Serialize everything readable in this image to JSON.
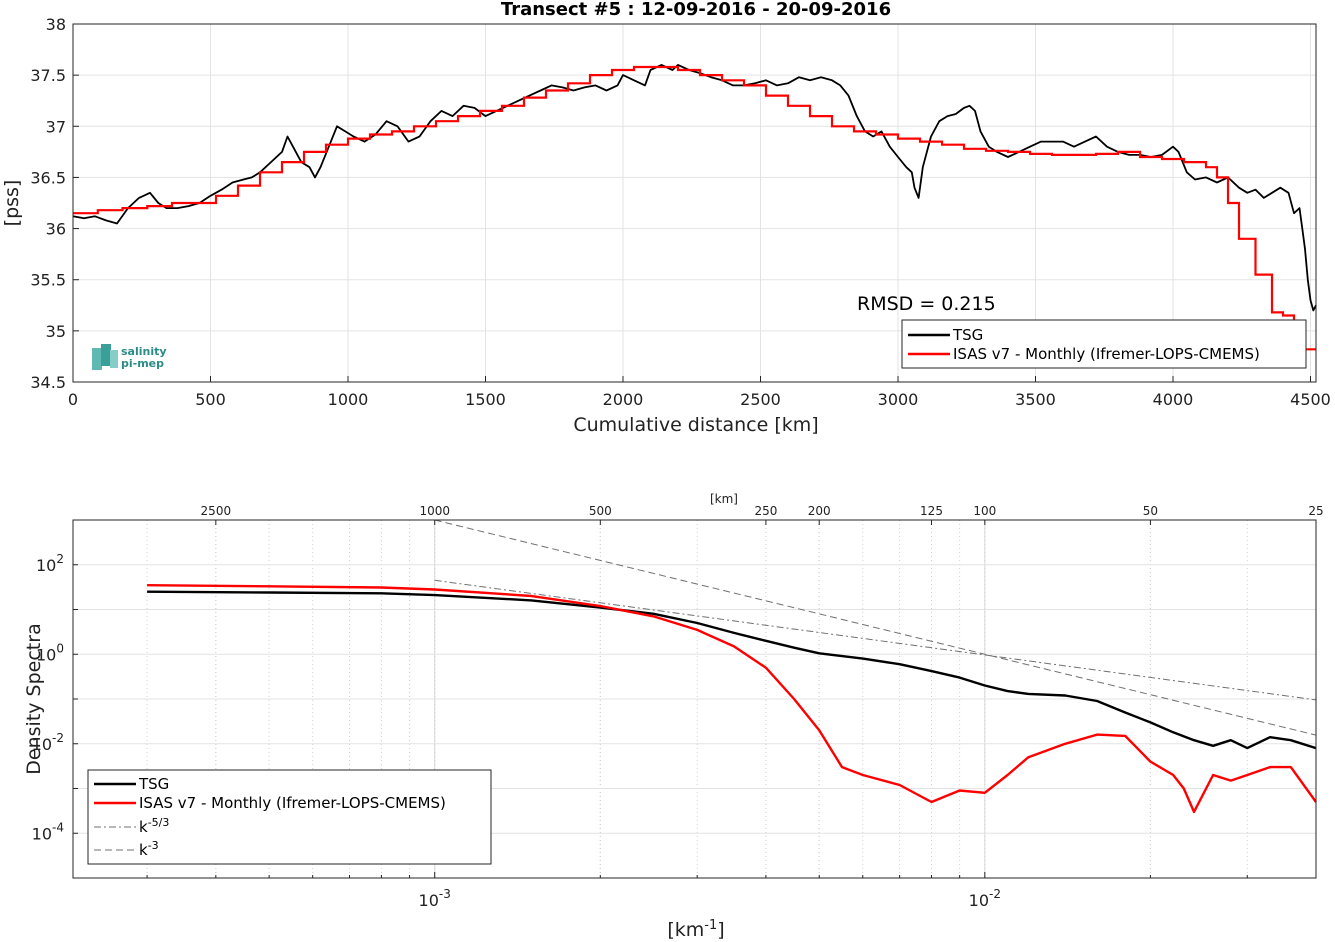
{
  "chart_data": [
    {
      "type": "line",
      "title": "Transect #5 : 12-09-2016 - 20-09-2016",
      "xlabel": "Cumulative distance [km]",
      "ylabel": "[pss]",
      "xlim": [
        0,
        4520
      ],
      "ylim": [
        34.5,
        38
      ],
      "xticks": [
        0,
        500,
        1000,
        1500,
        2000,
        2500,
        3000,
        3500,
        4000,
        4500
      ],
      "yticks": [
        34.5,
        35,
        35.5,
        36,
        36.5,
        37,
        37.5,
        38
      ],
      "xtick_labels": [
        "0",
        "500",
        "1000",
        "1500",
        "2000",
        "2500",
        "3000",
        "3500",
        "4000",
        "4500"
      ],
      "ytick_labels": [
        "34.5",
        "35",
        "35.5",
        "36",
        "36.5",
        "37",
        "37.5",
        "38"
      ],
      "grid": true,
      "legend_position": "bottom-right",
      "annotation": "RMSD = 0.215",
      "logo": {
        "line1": "salinity",
        "line2": "pi-mep",
        "color": "#2a8c86"
      },
      "series": [
        {
          "name": "TSG",
          "color": "#000000",
          "x": [
            0,
            40,
            80,
            120,
            160,
            200,
            240,
            280,
            310,
            340,
            380,
            420,
            460,
            500,
            540,
            580,
            620,
            650,
            680,
            720,
            760,
            780,
            800,
            830,
            860,
            880,
            900,
            930,
            960,
            990,
            1020,
            1060,
            1100,
            1140,
            1180,
            1220,
            1260,
            1300,
            1340,
            1380,
            1420,
            1460,
            1500,
            1540,
            1580,
            1620,
            1660,
            1700,
            1740,
            1780,
            1820,
            1860,
            1900,
            1940,
            1980,
            2000,
            2040,
            2080,
            2100,
            2140,
            2180,
            2200,
            2240,
            2280,
            2320,
            2360,
            2400,
            2440,
            2480,
            2520,
            2560,
            2600,
            2640,
            2680,
            2720,
            2760,
            2790,
            2820,
            2850,
            2880,
            2910,
            2940,
            2970,
            3000,
            3030,
            3050,
            3060,
            3075,
            3090,
            3120,
            3150,
            3180,
            3210,
            3240,
            3260,
            3280,
            3300,
            3330,
            3360,
            3400,
            3440,
            3480,
            3520,
            3560,
            3600,
            3640,
            3680,
            3720,
            3760,
            3800,
            3840,
            3880,
            3920,
            3960,
            4000,
            4020,
            4050,
            4080,
            4120,
            4160,
            4200,
            4240,
            4270,
            4300,
            4330,
            4360,
            4390,
            4420,
            4440,
            4460,
            4470,
            4480,
            4490,
            4500,
            4510,
            4520
          ],
          "y": [
            36.12,
            36.1,
            36.12,
            36.08,
            36.05,
            36.2,
            36.3,
            36.35,
            36.25,
            36.2,
            36.2,
            36.22,
            36.25,
            36.32,
            36.38,
            36.45,
            36.48,
            36.5,
            36.55,
            36.65,
            36.75,
            36.9,
            36.8,
            36.65,
            36.6,
            36.5,
            36.6,
            36.8,
            37.0,
            36.95,
            36.9,
            36.85,
            36.92,
            37.05,
            37.0,
            36.85,
            36.9,
            37.05,
            37.15,
            37.1,
            37.2,
            37.18,
            37.1,
            37.15,
            37.2,
            37.25,
            37.3,
            37.35,
            37.4,
            37.38,
            37.35,
            37.38,
            37.4,
            37.35,
            37.4,
            37.5,
            37.45,
            37.4,
            37.55,
            37.6,
            37.55,
            37.6,
            37.55,
            37.52,
            37.48,
            37.45,
            37.4,
            37.4,
            37.42,
            37.45,
            37.4,
            37.42,
            37.48,
            37.45,
            37.48,
            37.45,
            37.4,
            37.3,
            37.1,
            36.95,
            36.9,
            36.95,
            36.8,
            36.7,
            36.6,
            36.55,
            36.4,
            36.3,
            36.6,
            36.9,
            37.05,
            37.1,
            37.12,
            37.18,
            37.2,
            37.15,
            36.95,
            36.8,
            36.75,
            36.7,
            36.75,
            36.8,
            36.85,
            36.85,
            36.85,
            36.8,
            36.85,
            36.9,
            36.8,
            36.75,
            36.72,
            36.72,
            36.7,
            36.72,
            36.8,
            36.75,
            36.55,
            36.48,
            36.5,
            36.45,
            36.5,
            36.4,
            36.35,
            36.38,
            36.3,
            36.35,
            36.4,
            36.35,
            36.15,
            36.2,
            36.0,
            35.8,
            35.5,
            35.3,
            35.2,
            35.25
          ]
        },
        {
          "name": "ISAS v7 - Monthly (Ifremer-LOPS-CMEMS)",
          "color": "#ff0000",
          "x": [
            0,
            90,
            180,
            270,
            360,
            450,
            520,
            600,
            680,
            760,
            840,
            920,
            1000,
            1080,
            1160,
            1240,
            1320,
            1400,
            1480,
            1560,
            1640,
            1720,
            1800,
            1880,
            1960,
            2040,
            2120,
            2200,
            2280,
            2360,
            2440,
            2520,
            2600,
            2680,
            2760,
            2840,
            2920,
            3000,
            3080,
            3160,
            3240,
            3320,
            3400,
            3480,
            3560,
            3640,
            3720,
            3800,
            3880,
            3960,
            4040,
            4120,
            4160,
            4200,
            4240,
            4300,
            4360,
            4400,
            4440,
            4480,
            4520
          ],
          "y": [
            36.15,
            36.18,
            36.2,
            36.22,
            36.25,
            36.25,
            36.32,
            36.42,
            36.55,
            36.65,
            36.75,
            36.82,
            36.88,
            36.92,
            36.95,
            37.0,
            37.05,
            37.1,
            37.15,
            37.2,
            37.28,
            37.35,
            37.42,
            37.5,
            37.55,
            37.58,
            37.58,
            37.55,
            37.5,
            37.45,
            37.4,
            37.3,
            37.2,
            37.1,
            37.0,
            36.95,
            36.92,
            36.88,
            36.85,
            36.82,
            36.78,
            36.76,
            36.75,
            36.73,
            36.72,
            36.72,
            36.73,
            36.75,
            36.7,
            36.68,
            36.65,
            36.6,
            36.5,
            36.25,
            35.9,
            35.55,
            35.18,
            35.15,
            34.88,
            34.82,
            34.82
          ]
        }
      ]
    },
    {
      "type": "line",
      "xlabel": "[km⁻¹]",
      "ylabel": "Density Spectra",
      "x_scale": "log",
      "y_scale": "log",
      "xlim": [
        0.00022,
        0.04
      ],
      "ylim": [
        1e-05,
        1000
      ],
      "xtick_major": [
        0.001,
        0.01
      ],
      "ytick_major": [
        0.0001,
        0.01,
        1,
        100
      ],
      "top_axis": {
        "label": "[km]",
        "ticks_km": [
          2500,
          1000,
          500,
          250,
          200,
          125,
          100,
          50,
          25
        ],
        "tick_labels": [
          "2500",
          "1000",
          "500",
          "250",
          "200",
          "125",
          "100",
          "50",
          "25"
        ]
      },
      "grid": true,
      "legend_position": "bottom-left",
      "series": [
        {
          "name": "TSG",
          "color": "#000000",
          "x": [
            0.0003,
            0.0005,
            0.0008,
            0.001,
            0.0015,
            0.002,
            0.0025,
            0.003,
            0.0035,
            0.004,
            0.0045,
            0.005,
            0.006,
            0.007,
            0.008,
            0.009,
            0.01,
            0.011,
            0.012,
            0.014,
            0.016,
            0.018,
            0.02,
            0.022,
            0.024,
            0.026,
            0.028,
            0.03,
            0.033,
            0.036,
            0.04
          ],
          "y": [
            25,
            24,
            23,
            21,
            16,
            11,
            8,
            5,
            3,
            2,
            1.4,
            1.05,
            0.8,
            0.6,
            0.42,
            0.3,
            0.2,
            0.15,
            0.13,
            0.12,
            0.09,
            0.05,
            0.03,
            0.018,
            0.012,
            0.009,
            0.012,
            0.008,
            0.014,
            0.012,
            0.008
          ]
        },
        {
          "name": "ISAS v7 - Monthly (Ifremer-LOPS-CMEMS)",
          "color": "#ff0000",
          "x": [
            0.0003,
            0.0005,
            0.0008,
            0.001,
            0.0015,
            0.002,
            0.0025,
            0.003,
            0.0035,
            0.004,
            0.0045,
            0.005,
            0.0055,
            0.006,
            0.007,
            0.008,
            0.009,
            0.01,
            0.011,
            0.012,
            0.014,
            0.016,
            0.018,
            0.02,
            0.022,
            0.023,
            0.024,
            0.026,
            0.028,
            0.03,
            0.033,
            0.036,
            0.04
          ],
          "y": [
            35,
            33,
            31,
            28,
            20,
            12,
            7,
            3.5,
            1.5,
            0.5,
            0.1,
            0.02,
            0.003,
            0.002,
            0.0012,
            0.0005,
            0.0009,
            0.0008,
            0.002,
            0.005,
            0.01,
            0.016,
            0.015,
            0.004,
            0.002,
            0.001,
            0.0003,
            0.002,
            0.0015,
            0.002,
            0.003,
            0.003,
            0.0005
          ]
        },
        {
          "name": "k⁻⁵/³",
          "color": "#707070",
          "dash": "dashdot",
          "x": [
            0.001,
            0.04
          ],
          "y": [
            45,
            0.0955
          ]
        },
        {
          "name": "k⁻³",
          "color": "#707070",
          "dash": "dashed",
          "x": [
            0.001,
            0.04
          ],
          "y": [
            1000,
            0.0156
          ]
        }
      ]
    }
  ]
}
